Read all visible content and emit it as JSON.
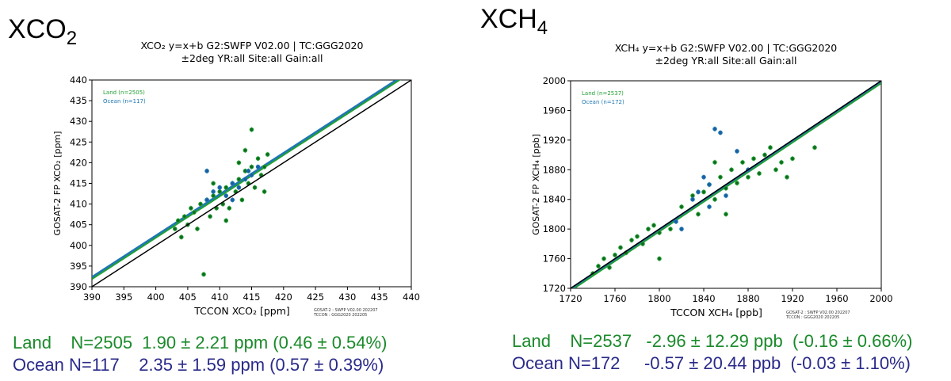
{
  "panels": [
    {
      "heading": "XCO",
      "heading_sub": "2",
      "title_line1": "XCO₂ y=x+b  G2:SWFP V02.00 | TC:GGG2020",
      "title_line2": "±2deg YR:all Site:all Gain:all",
      "footnote1": "GOSAT-2 : SWFP V02.00 202207",
      "footnote2": "TCCON : GGG2020 202205",
      "stats": [
        {
          "label": "Land",
          "text": "N=2505  1.90 ± 2.21 ppm (0.46 ± 0.54%)",
          "color": "#1a8a2a"
        },
        {
          "label": "Ocean",
          "text": "N=117    2.35 ± 1.59 ppm (0.57 ± 0.39%)",
          "color": "#2a2a8a"
        }
      ]
    },
    {
      "heading": "XCH",
      "heading_sub": "4",
      "title_line1": "XCH₄ y=x+b  G2:SWFP V02.00 | TC:GGG2020",
      "title_line2": "±2deg YR:all Site:all Gain:all",
      "footnote1": "GOSAT-2 : SWFP V02.00 202207",
      "footnote2": "TCCON : GGG2020 202205",
      "stats": [
        {
          "label": "Land",
          "text": "N=2537   -2.96 ± 12.29 ppb  (-0.16 ± 0.66%)",
          "color": "#1a8a2a"
        },
        {
          "label": "Ocean",
          "text": "N=172     -0.57 ± 20.44 ppb  (-0.03 ± 1.10%)",
          "color": "#2a2a8a"
        }
      ]
    }
  ],
  "chart_data": [
    {
      "type": "scatter",
      "xlabel": "TCCON XCO₂ [ppm]",
      "ylabel": "GOSAT-2 FP XCO₂ [ppm]",
      "xlim": [
        390,
        440
      ],
      "ylim": [
        390,
        440
      ],
      "xticks": [
        390,
        395,
        400,
        405,
        410,
        415,
        420,
        425,
        430,
        435,
        440
      ],
      "yticks": [
        390,
        395,
        400,
        405,
        410,
        415,
        420,
        425,
        430,
        435,
        440
      ],
      "legend_position": "top-left",
      "series": [
        {
          "name": "Land (n=2505)",
          "color": "#22a033",
          "offset": 1.9,
          "points": [
            [
              403,
              404
            ],
            [
              403.5,
              406
            ],
            [
              404,
              402
            ],
            [
              404.5,
              407
            ],
            [
              405,
              405
            ],
            [
              405.5,
              409
            ],
            [
              406,
              408
            ],
            [
              406.5,
              404
            ],
            [
              407,
              410
            ],
            [
              407.5,
              393
            ],
            [
              408,
              411
            ],
            [
              408.5,
              407
            ],
            [
              409,
              412
            ],
            [
              409.5,
              409
            ],
            [
              410,
              413
            ],
            [
              410.5,
              410
            ],
            [
              411,
              414
            ],
            [
              411.5,
              409
            ],
            [
              412,
              415
            ],
            [
              412.5,
              413
            ],
            [
              413,
              416
            ],
            [
              413.5,
              411
            ],
            [
              414,
              418
            ],
            [
              414.5,
              415
            ],
            [
              415,
              419
            ],
            [
              415.5,
              414
            ],
            [
              416,
              421
            ],
            [
              416.5,
              417
            ],
            [
              417,
              419
            ],
            [
              417.5,
              422
            ],
            [
              415,
              428
            ],
            [
              413,
              420
            ],
            [
              411,
              406
            ],
            [
              409,
              415
            ],
            [
              417,
              413
            ],
            [
              414,
              423
            ]
          ]
        },
        {
          "name": "Ocean (n=117)",
          "color": "#1f77b4",
          "offset": 2.35,
          "points": [
            [
              408,
              411
            ],
            [
              409,
              413
            ],
            [
              410,
              414
            ],
            [
              411,
              412
            ],
            [
              412,
              415
            ],
            [
              413,
              414
            ],
            [
              414,
              416
            ],
            [
              414.5,
              418
            ],
            [
              415,
              417
            ],
            [
              408,
              418
            ],
            [
              412,
              411
            ],
            [
              416,
              419
            ]
          ]
        }
      ]
    },
    {
      "type": "scatter",
      "xlabel": "TCCON XCH₄ [ppb]",
      "ylabel": "GOSAT-2 FP XCH₄ [ppb]",
      "xlim": [
        1720,
        2000
      ],
      "ylim": [
        1720,
        2000
      ],
      "xticks": [
        1720,
        1760,
        1800,
        1840,
        1880,
        1920,
        1960,
        2000
      ],
      "yticks": [
        1720,
        1760,
        1800,
        1840,
        1880,
        1920,
        1960,
        2000
      ],
      "legend_position": "top-left",
      "series": [
        {
          "name": "Land (n=2537)",
          "color": "#22a033",
          "offset": -2.96,
          "points": [
            [
              1740,
              1740
            ],
            [
              1745,
              1750
            ],
            [
              1750,
              1760
            ],
            [
              1755,
              1748
            ],
            [
              1760,
              1765
            ],
            [
              1765,
              1775
            ],
            [
              1770,
              1768
            ],
            [
              1775,
              1785
            ],
            [
              1780,
              1790
            ],
            [
              1785,
              1780
            ],
            [
              1790,
              1800
            ],
            [
              1795,
              1805
            ],
            [
              1800,
              1795
            ],
            [
              1810,
              1800
            ],
            [
              1820,
              1830
            ],
            [
              1830,
              1845
            ],
            [
              1835,
              1820
            ],
            [
              1840,
              1850
            ],
            [
              1845,
              1860
            ],
            [
              1850,
              1840
            ],
            [
              1855,
              1870
            ],
            [
              1860,
              1855
            ],
            [
              1865,
              1880
            ],
            [
              1870,
              1862
            ],
            [
              1875,
              1890
            ],
            [
              1880,
              1870
            ],
            [
              1885,
              1895
            ],
            [
              1890,
              1875
            ],
            [
              1895,
              1900
            ],
            [
              1900,
              1910
            ],
            [
              1905,
              1880
            ],
            [
              1910,
              1890
            ],
            [
              1915,
              1870
            ],
            [
              1920,
              1895
            ],
            [
              1940,
              1910
            ],
            [
              1860,
              1820
            ],
            [
              1850,
              1890
            ],
            [
              1800,
              1760
            ]
          ]
        },
        {
          "name": "Ocean (n=172)",
          "color": "#1f77b4",
          "offset": -0.57,
          "points": [
            [
              1815,
              1810
            ],
            [
              1820,
              1800
            ],
            [
              1830,
              1840
            ],
            [
              1835,
              1850
            ],
            [
              1840,
              1870
            ],
            [
              1845,
              1860
            ],
            [
              1850,
              1935
            ],
            [
              1855,
              1930
            ],
            [
              1860,
              1845
            ],
            [
              1845,
              1830
            ],
            [
              1870,
              1905
            ],
            [
              1880,
              1880
            ]
          ]
        }
      ]
    }
  ]
}
